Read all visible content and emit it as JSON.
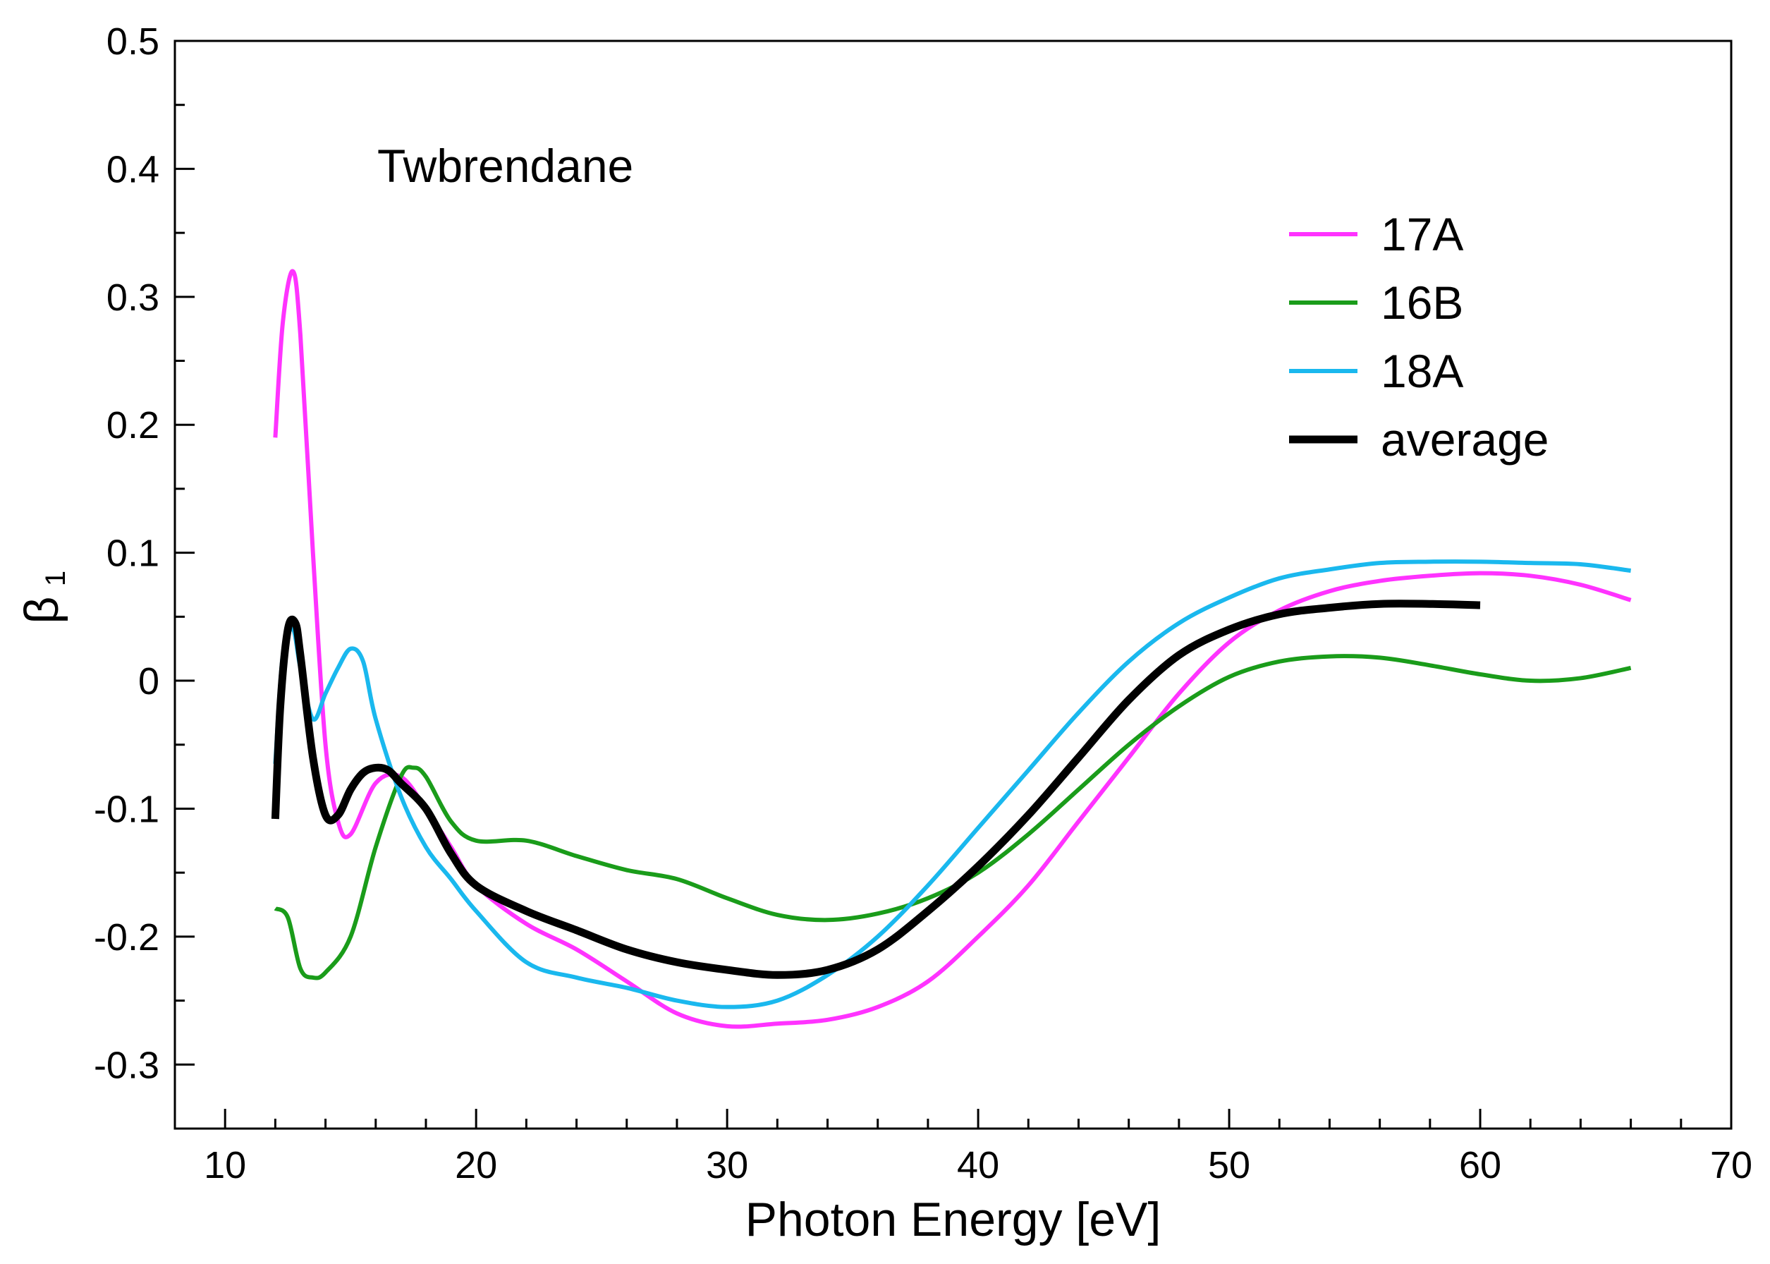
{
  "chart_data": {
    "type": "line",
    "title": "",
    "annotation": "Twbrendane",
    "xlabel": "Photon Energy [eV]",
    "ylabel": "β",
    "ylabel_sub": "1",
    "xlim": [
      8,
      70
    ],
    "ylim": [
      -0.35,
      0.5
    ],
    "xticks": [
      10,
      20,
      30,
      40,
      50,
      60,
      70
    ],
    "yticks": [
      -0.3,
      -0.2,
      -0.1,
      0,
      0.1,
      0.2,
      0.3,
      0.4,
      0.5
    ],
    "ytick_labels": [
      "-0.3",
      "-0.2",
      "-0.1",
      "0",
      "0.1",
      "0.2",
      "0.3",
      "0.4",
      "0.5"
    ],
    "xtick_labels": [
      "10",
      "20",
      "30",
      "40",
      "50",
      "60",
      "70"
    ],
    "legend_position": "top-right",
    "series": [
      {
        "name": "17A",
        "color": "#ff33ff",
        "width": 6,
        "x": [
          12.0,
          12.3,
          12.7,
          13.0,
          13.5,
          14.0,
          14.5,
          15.0,
          16.0,
          17.0,
          18.0,
          19.0,
          20.0,
          22.0,
          24.0,
          26.0,
          28.0,
          30.0,
          32.0,
          34.0,
          36.0,
          38.0,
          40.0,
          42.0,
          44.0,
          46.0,
          48.0,
          50.0,
          52.0,
          54.0,
          56.0,
          58.0,
          60.0,
          62.0,
          64.0,
          66.0
        ],
        "values": [
          0.19,
          0.28,
          0.32,
          0.27,
          0.1,
          -0.05,
          -0.11,
          -0.12,
          -0.08,
          -0.075,
          -0.1,
          -0.13,
          -0.16,
          -0.19,
          -0.21,
          -0.235,
          -0.26,
          -0.27,
          -0.268,
          -0.265,
          -0.255,
          -0.235,
          -0.2,
          -0.16,
          -0.11,
          -0.06,
          -0.01,
          0.03,
          0.055,
          0.07,
          0.078,
          0.082,
          0.084,
          0.082,
          0.075,
          0.063
        ]
      },
      {
        "name": "16B",
        "color": "#1a9c1a",
        "width": 6,
        "x": [
          12.0,
          12.5,
          13.0,
          13.5,
          14.0,
          15.0,
          16.0,
          17.0,
          17.5,
          18.0,
          19.0,
          20.0,
          22.0,
          24.0,
          26.0,
          28.0,
          30.0,
          32.0,
          34.0,
          36.0,
          38.0,
          40.0,
          42.0,
          44.0,
          46.0,
          48.0,
          50.0,
          52.0,
          54.0,
          56.0,
          58.0,
          60.0,
          62.0,
          64.0,
          66.0
        ],
        "values": [
          -0.178,
          -0.185,
          -0.225,
          -0.232,
          -0.228,
          -0.2,
          -0.13,
          -0.075,
          -0.068,
          -0.075,
          -0.11,
          -0.125,
          -0.125,
          -0.137,
          -0.148,
          -0.155,
          -0.17,
          -0.183,
          -0.187,
          -0.182,
          -0.17,
          -0.15,
          -0.12,
          -0.085,
          -0.05,
          -0.02,
          0.003,
          0.015,
          0.019,
          0.018,
          0.012,
          0.005,
          0.0,
          0.002,
          0.01
        ]
      },
      {
        "name": "18A",
        "color": "#1ab8ee",
        "width": 6,
        "x": [
          12.0,
          12.3,
          12.7,
          13.0,
          13.5,
          14.0,
          14.5,
          15.0,
          15.5,
          16.0,
          17.0,
          18.0,
          19.0,
          20.0,
          22.0,
          24.0,
          26.0,
          28.0,
          30.0,
          32.0,
          34.0,
          36.0,
          38.0,
          40.0,
          42.0,
          44.0,
          46.0,
          48.0,
          50.0,
          52.0,
          54.0,
          56.0,
          58.0,
          60.0,
          62.0,
          64.0,
          66.0
        ],
        "values": [
          -0.065,
          0.02,
          0.04,
          0.01,
          -0.03,
          -0.01,
          0.01,
          0.025,
          0.015,
          -0.03,
          -0.09,
          -0.13,
          -0.155,
          -0.18,
          -0.22,
          -0.232,
          -0.24,
          -0.25,
          -0.255,
          -0.25,
          -0.23,
          -0.2,
          -0.16,
          -0.115,
          -0.07,
          -0.025,
          0.015,
          0.045,
          0.065,
          0.08,
          0.087,
          0.092,
          0.093,
          0.093,
          0.092,
          0.091,
          0.086
        ]
      },
      {
        "name": "average",
        "color": "#000000",
        "width": 11,
        "x": [
          12.0,
          12.2,
          12.5,
          12.8,
          13.0,
          13.5,
          14.0,
          14.5,
          15.0,
          15.5,
          16.0,
          16.5,
          17.0,
          18.0,
          19.0,
          20.0,
          22.0,
          24.0,
          26.0,
          28.0,
          30.0,
          32.0,
          34.0,
          36.0,
          38.0,
          40.0,
          42.0,
          44.0,
          46.0,
          48.0,
          50.0,
          52.0,
          54.0,
          56.0,
          58.0,
          60.0
        ],
        "values": [
          -0.108,
          -0.02,
          0.04,
          0.045,
          0.02,
          -0.06,
          -0.105,
          -0.105,
          -0.085,
          -0.072,
          -0.068,
          -0.07,
          -0.08,
          -0.1,
          -0.135,
          -0.16,
          -0.18,
          -0.195,
          -0.21,
          -0.22,
          -0.226,
          -0.23,
          -0.226,
          -0.21,
          -0.18,
          -0.145,
          -0.105,
          -0.06,
          -0.015,
          0.02,
          0.04,
          0.052,
          0.057,
          0.06,
          0.06,
          0.059
        ]
      }
    ]
  }
}
